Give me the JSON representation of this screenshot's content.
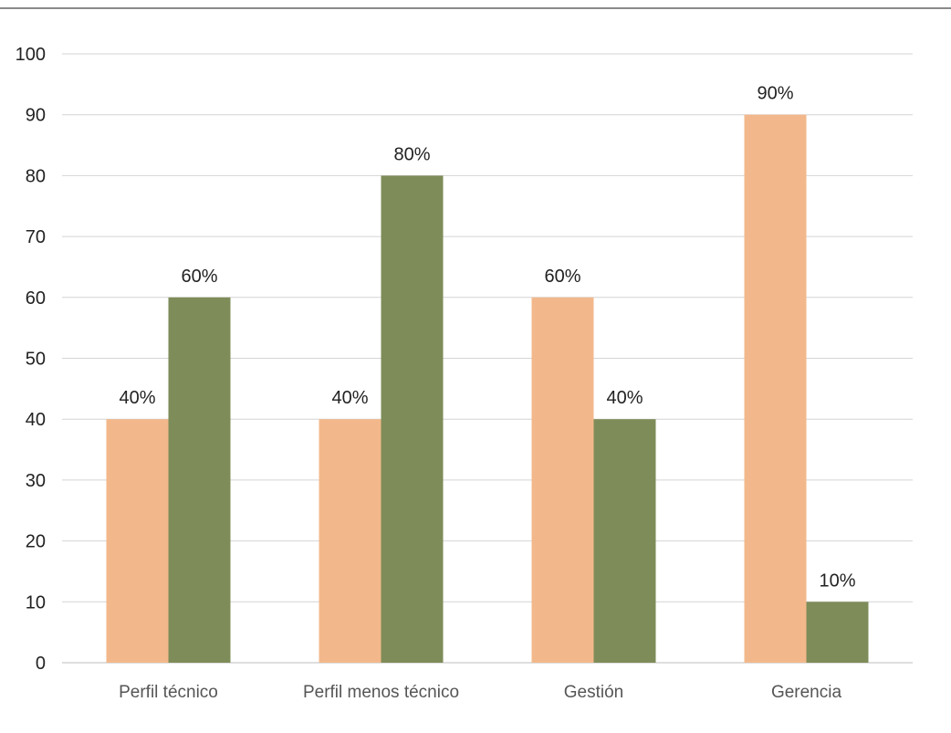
{
  "chart_data": {
    "type": "bar",
    "title": "",
    "xlabel": "",
    "ylabel": "",
    "ylim": [
      0,
      100
    ],
    "yticks": [
      0,
      10,
      20,
      30,
      40,
      50,
      60,
      70,
      80,
      90,
      100
    ],
    "grid": true,
    "legend": "none",
    "categories": [
      "Perfil técnico",
      "Perfil menos técnico",
      "Gestión",
      "Gerencia"
    ],
    "series": [
      {
        "values": [
          40,
          40,
          60,
          90
        ],
        "labels": [
          "40%",
          "40%",
          "60%",
          "90%"
        ],
        "color": "#F2B88B"
      },
      {
        "values": [
          60,
          80,
          40,
          10
        ],
        "labels": [
          "60%",
          "80%",
          "40%",
          "10%"
        ],
        "color": "#7E8C59"
      }
    ]
  }
}
